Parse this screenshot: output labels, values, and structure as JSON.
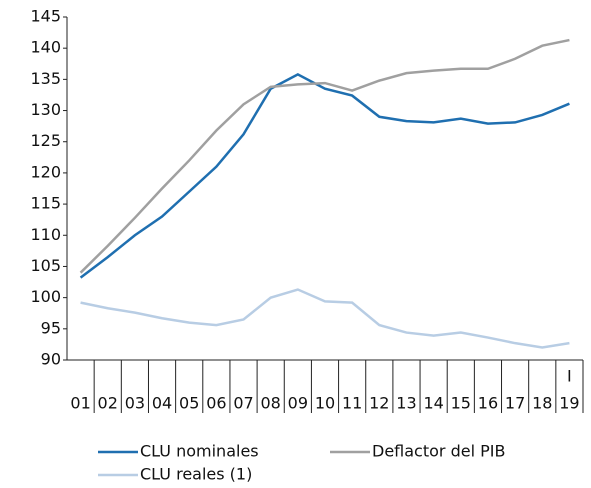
{
  "chart_data": {
    "type": "line",
    "categories": [
      "01",
      "02",
      "03",
      "04",
      "05",
      "06",
      "07",
      "08",
      "09",
      "10",
      "11",
      "12",
      "13",
      "14",
      "15",
      "16",
      "17",
      "18",
      "19"
    ],
    "annotation": "I",
    "series": [
      {
        "name": "CLU nominales",
        "color": "#1f6fb0",
        "values": [
          103.2,
          106.5,
          110,
          113,
          117,
          121,
          126.2,
          133.5,
          135.8,
          133.5,
          132.4,
          129,
          128.3,
          128.1,
          128.7,
          127.9,
          128.1,
          129.3,
          131.1
        ]
      },
      {
        "name": "Deflactor del PIB",
        "color": "#a0a0a0",
        "values": [
          104,
          108.3,
          112.8,
          117.5,
          122,
          126.8,
          131,
          133.8,
          134.2,
          134.4,
          133.2,
          134.8,
          136,
          136.4,
          136.7,
          136.7,
          138.3,
          140.4,
          141.3
        ]
      },
      {
        "name": "CLU reales (1)",
        "color": "#b8cde4",
        "values": [
          99.2,
          98.3,
          97.6,
          96.7,
          96,
          95.6,
          96.5,
          100,
          101.3,
          99.4,
          99.2,
          95.6,
          94.4,
          93.9,
          94.4,
          93.6,
          92.7,
          92,
          92.7
        ]
      }
    ],
    "ylim": [
      90,
      145
    ],
    "yticks": [
      90,
      95,
      100,
      105,
      110,
      115,
      120,
      125,
      130,
      135,
      140,
      145
    ],
    "grid": false
  }
}
